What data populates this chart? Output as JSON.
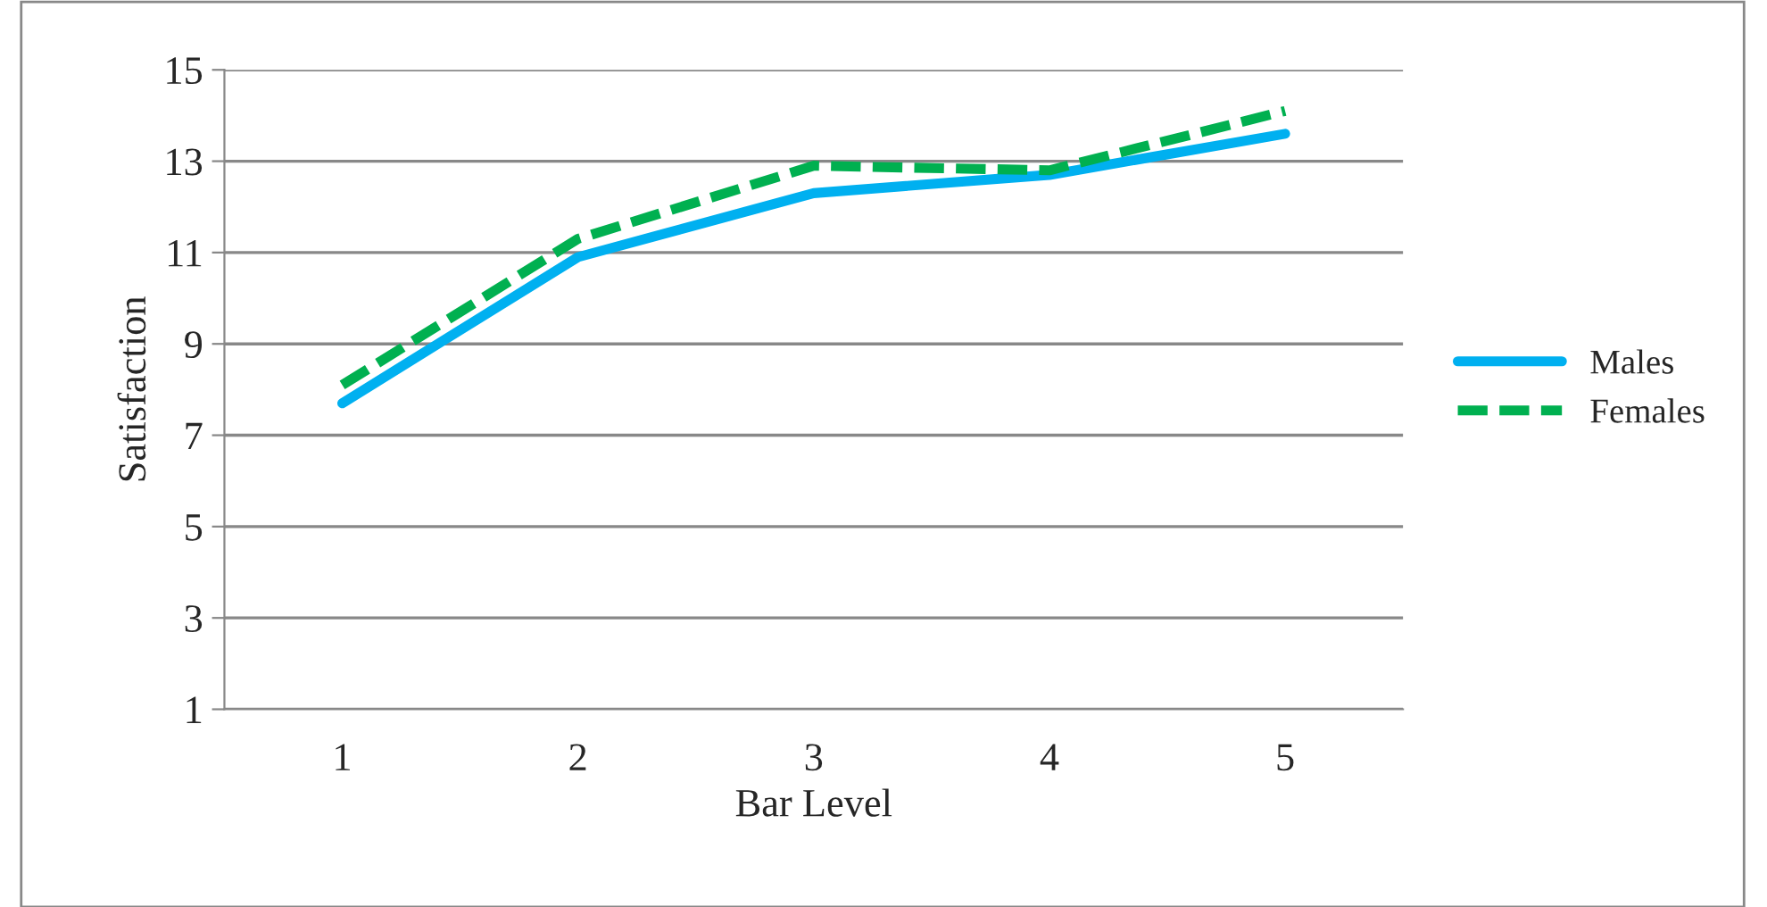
{
  "chart_data": {
    "type": "line",
    "xlabel": "Bar Level",
    "ylabel": "Satisfaction",
    "categories": [
      "1",
      "2",
      "3",
      "4",
      "5"
    ],
    "series": [
      {
        "name": "Males",
        "color": "#00b0f0",
        "values": [
          7.7,
          10.9,
          12.3,
          12.7,
          13.6
        ],
        "line_style": "solid"
      },
      {
        "name": "Females",
        "color": "#00b050",
        "values": [
          8.1,
          11.3,
          12.9,
          12.8,
          14.1
        ],
        "line_style": "dashed"
      }
    ],
    "ylim": [
      1,
      15
    ],
    "yticks": [
      1,
      3,
      5,
      7,
      9,
      11,
      13,
      15
    ],
    "grid": "y",
    "legend": "right",
    "marker": "none"
  }
}
